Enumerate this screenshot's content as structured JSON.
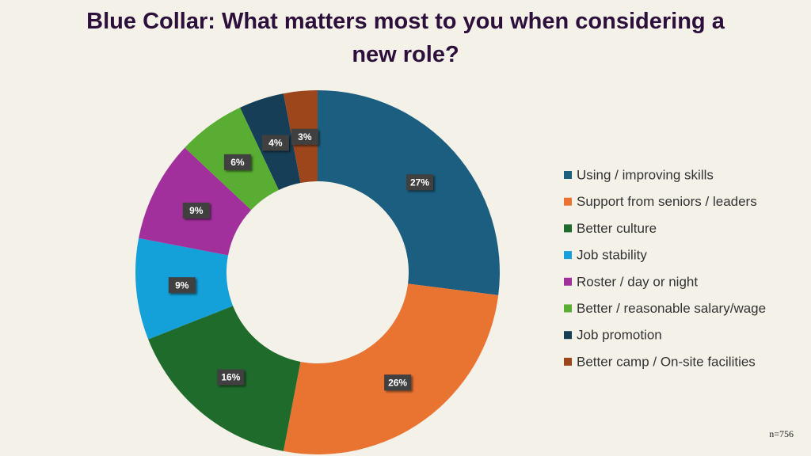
{
  "chart_data": {
    "type": "donut",
    "title": "Blue Collar: What matters most to you when considering a new role?",
    "categories": [
      "Using / improving skills",
      "Support from seniors / leaders",
      "Better culture",
      "Job stability",
      "Roster / day or night",
      "Better / reasonable salary/wage",
      "Job promotion",
      "Better camp / On-site facilities"
    ],
    "values": [
      27,
      26,
      16,
      9,
      9,
      6,
      4,
      3
    ],
    "value_labels": [
      "27%",
      "26%",
      "16%",
      "9%",
      "9%",
      "6%",
      "4%",
      "3%"
    ],
    "colors": [
      "#1b5e80",
      "#e97432",
      "#1e6b2c",
      "#14a0d8",
      "#a2309c",
      "#58ad32",
      "#163e57",
      "#9d461c"
    ],
    "legend": "right",
    "annotation": "n=756"
  }
}
